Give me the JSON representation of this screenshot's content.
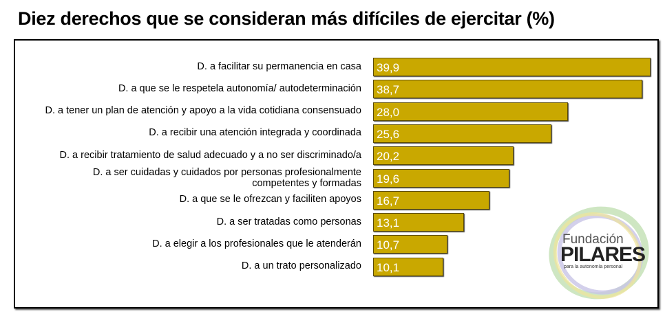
{
  "chart_data": {
    "type": "bar",
    "orientation": "horizontal",
    "title": "Diez derechos que se consideran más difíciles de ejercitar (%)",
    "categories": [
      "D. a facilitar su permanencia en casa",
      "D. a que se le respetela autonomía/ autodeterminación",
      "D. a tener un plan de atención y apoyo a la vida cotidiana consensuado",
      "D. a recibir una atención integrada y coordinada",
      "D. a recibir tratamiento de salud adecuado y a no ser discriminado/a",
      "D. a ser cuidadas y cuidados por personas profesionalmente competentes y formadas",
      "D. a que se le ofrezcan y faciliten apoyos",
      "D. a ser tratadas como personas",
      "D. a elegir a los profesionales que le atenderán",
      "D. a un trato personalizado"
    ],
    "values": [
      39.9,
      38.7,
      28.0,
      25.6,
      20.2,
      19.6,
      16.7,
      13.1,
      10.7,
      10.1
    ],
    "value_labels": [
      "39,9",
      "38,7",
      "28,0",
      "25,6",
      "20,2",
      "19,6",
      "16,7",
      "13,1",
      "10,7",
      "10,1"
    ],
    "xlim": [
      0,
      40
    ],
    "grid": false,
    "bar_color": "#C9A800"
  },
  "logo": {
    "line1": "Fundación",
    "line2": "PILARES",
    "line3": "para la autonomía personal"
  }
}
